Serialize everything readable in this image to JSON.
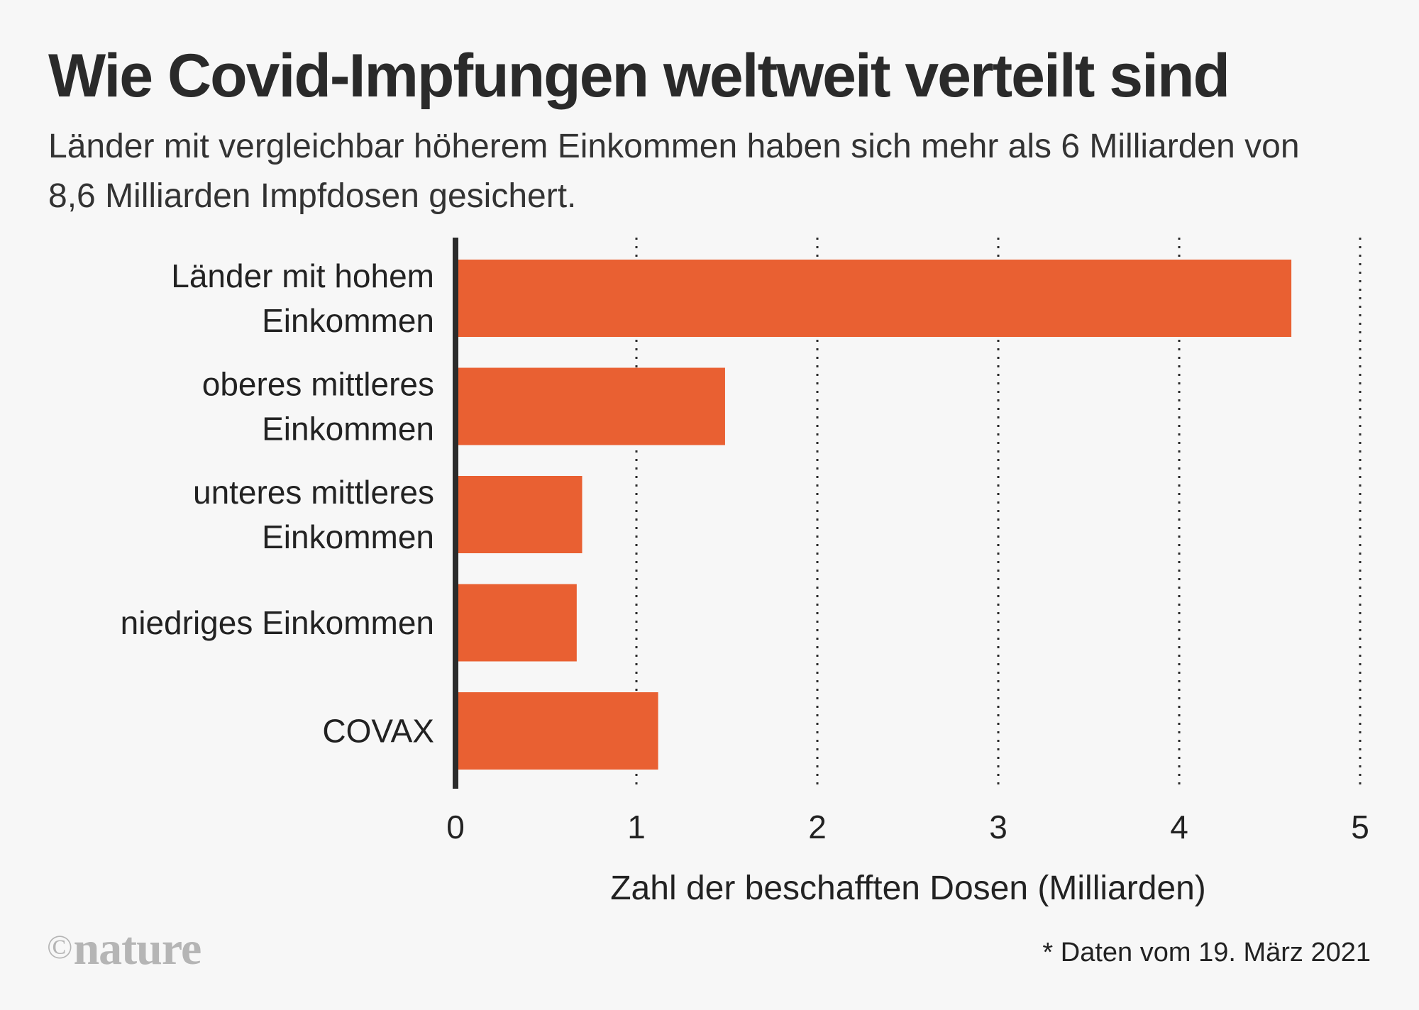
{
  "title": "Wie Covid-Impfungen weltweit verteilt sind",
  "subtitle": "Länder mit vergleichbar höherem Einkommen haben sich mehr als 6 Milliarden von 8,6 Milliarden Impfdosen gesichert.",
  "footnote": "* Daten vom 19. März 2021",
  "logo": {
    "symbol": "©",
    "text": "nature"
  },
  "colors": {
    "bar": "#e96032",
    "axis": "#2b2b2b",
    "grid": "#2b2b2b",
    "text": "#222222"
  },
  "chart_data": {
    "type": "bar",
    "orientation": "horizontal",
    "title": "Wie Covid-Impfungen weltweit verteilt sind",
    "xlabel": "Zahl der beschafften Dosen (Milliarden)",
    "ylabel": "",
    "xlim": [
      0,
      5
    ],
    "xticks": [
      "0",
      "1",
      "2",
      "3",
      "4",
      "5"
    ],
    "grid": true,
    "categories": [
      [
        "Länder mit hohem",
        "Einkommen"
      ],
      [
        "oberes mittleres",
        "Einkommen"
      ],
      [
        "unteres mittleres",
        "Einkommen"
      ],
      [
        "niedriges Einkommen"
      ],
      [
        "COVAX"
      ]
    ],
    "values": [
      4.62,
      1.49,
      0.7,
      0.67,
      1.12
    ]
  }
}
